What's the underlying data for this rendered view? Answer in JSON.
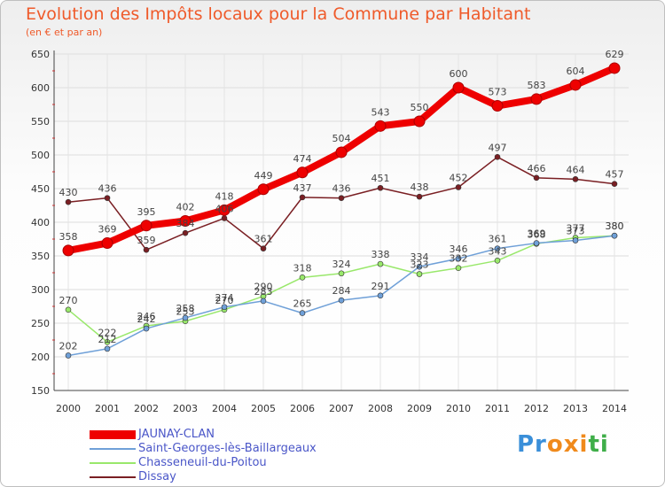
{
  "header": {
    "title": "Evolution des Impôts locaux pour la Commune par Habitant",
    "subtitle": "(en € et par an)"
  },
  "logo": {
    "parts": [
      "Pr",
      "o",
      "x",
      "i",
      "ti"
    ]
  },
  "chart_data": {
    "type": "line",
    "title": "Evolution des Impôts locaux pour la Commune par Habitant",
    "subtitle": "(en € et par an)",
    "xlabel": "",
    "ylabel": "",
    "ylim": [
      150,
      650
    ],
    "yticks": [
      150,
      200,
      250,
      300,
      350,
      400,
      450,
      500,
      550,
      600,
      650
    ],
    "x": [
      "2000",
      "2001",
      "2002",
      "2003",
      "2004",
      "2005",
      "2006",
      "2007",
      "2008",
      "2009",
      "2010",
      "2011",
      "2012",
      "2013",
      "2014"
    ],
    "grid": true,
    "legend_position": "bottom-left",
    "series": [
      {
        "name": "Dissay",
        "color": "#7a1f23",
        "values": [
          430,
          436,
          359,
          384,
          406,
          361,
          437,
          436,
          451,
          438,
          452,
          497,
          466,
          464,
          457
        ]
      },
      {
        "name": "Chasseneuil-du-Poitou",
        "color": "#99e86b",
        "values": [
          270,
          222,
          246,
          253,
          270,
          290,
          318,
          324,
          338,
          323,
          332,
          343,
          368,
          377,
          380
        ]
      },
      {
        "name": "Saint-Georges-lès-Baillargeaux",
        "color": "#6fa0d8",
        "values": [
          202,
          212,
          242,
          258,
          274,
          283,
          265,
          284,
          291,
          334,
          346,
          361,
          369,
          373,
          380
        ]
      },
      {
        "name": "JAUNAY-CLAN",
        "color": "#ee0000",
        "values": [
          358,
          369,
          395,
          402,
          418,
          449,
          474,
          504,
          543,
          550,
          600,
          573,
          583,
          604,
          629
        ]
      }
    ],
    "data_labels": {
      "Dissay": [
        "430",
        "436",
        "359",
        "384",
        "406",
        "361",
        "437",
        "436",
        "451",
        "438",
        "452",
        "497",
        "466",
        "464",
        "457"
      ],
      "Chasseneuil-du-Poitou": [
        "270",
        "222",
        "246",
        "253",
        "270",
        "290",
        "318",
        "324",
        "338",
        "323",
        "332",
        "343",
        "368",
        "377",
        "380"
      ],
      "Saint-Georges-lès-Baillargeaux": [
        "202",
        "212",
        "242",
        "258",
        "274",
        "283",
        "265",
        "284",
        "291",
        "334",
        "346",
        "361",
        "369",
        "373",
        "380"
      ],
      "JAUNAY-CLAN": [
        "358",
        "369",
        "395",
        "402",
        "418",
        "449",
        "474",
        "504",
        "543",
        "550",
        "600",
        "573",
        "583",
        "604",
        "629"
      ]
    },
    "legend": [
      "JAUNAY-CLAN",
      "Saint-Georges-lès-Baillargeaux",
      "Chasseneuil-du-Poitou",
      "Dissay"
    ]
  }
}
